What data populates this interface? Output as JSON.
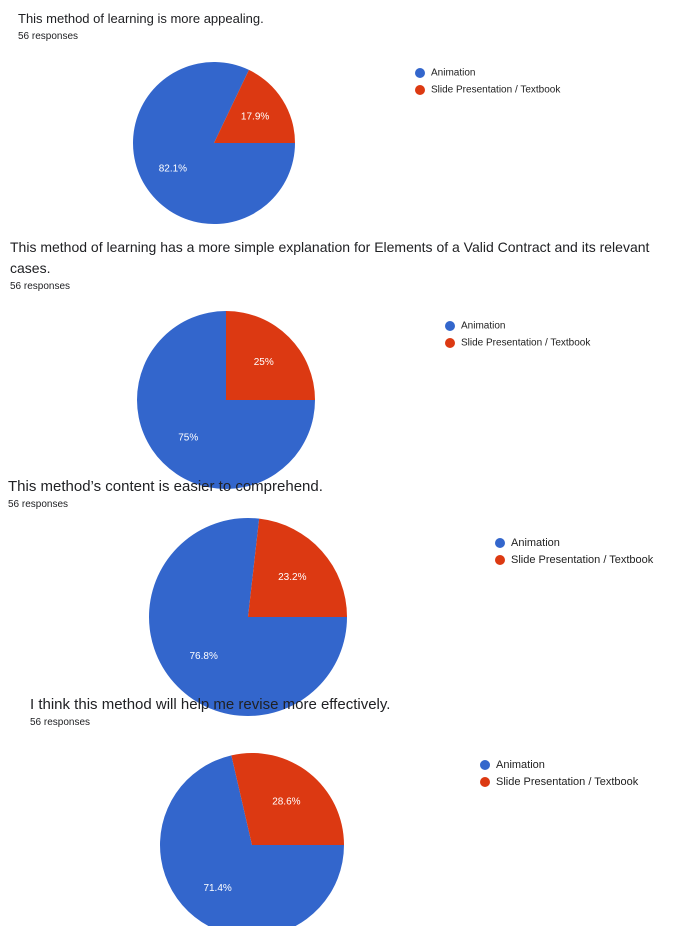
{
  "chart_data": [
    {
      "type": "pie",
      "title": "This method of learning is more appealing.",
      "subtitle": "56 responses",
      "categories": [
        "Animation",
        "Slide Presentation / Textbook"
      ],
      "values": [
        82.1,
        17.9
      ],
      "value_labels": [
        "82.1%",
        "17.9%"
      ],
      "colors": [
        "#3366cc",
        "#dc3912"
      ]
    },
    {
      "type": "pie",
      "title": "This method of learning has a more simple explanation for Elements of a Valid Contract and its relevant cases.",
      "subtitle": "56 responses",
      "categories": [
        "Animation",
        "Slide Presentation / Textbook"
      ],
      "values": [
        75,
        25
      ],
      "value_labels": [
        "75%",
        "25%"
      ],
      "colors": [
        "#3366cc",
        "#dc3912"
      ]
    },
    {
      "type": "pie",
      "title": "This method’s content is easier to comprehend.",
      "subtitle": "56 responses",
      "categories": [
        "Animation",
        "Slide Presentation / Textbook"
      ],
      "values": [
        76.8,
        23.2
      ],
      "value_labels": [
        "76.8%",
        "23.2%"
      ],
      "colors": [
        "#3366cc",
        "#dc3912"
      ]
    },
    {
      "type": "pie",
      "title": "I think this method will help me revise more effectively.",
      "subtitle": "56 responses",
      "categories": [
        "Animation",
        "Slide Presentation / Textbook"
      ],
      "values": [
        71.4,
        28.6
      ],
      "value_labels": [
        "71.4%",
        "28.6%"
      ],
      "colors": [
        "#3366cc",
        "#dc3912"
      ]
    }
  ]
}
